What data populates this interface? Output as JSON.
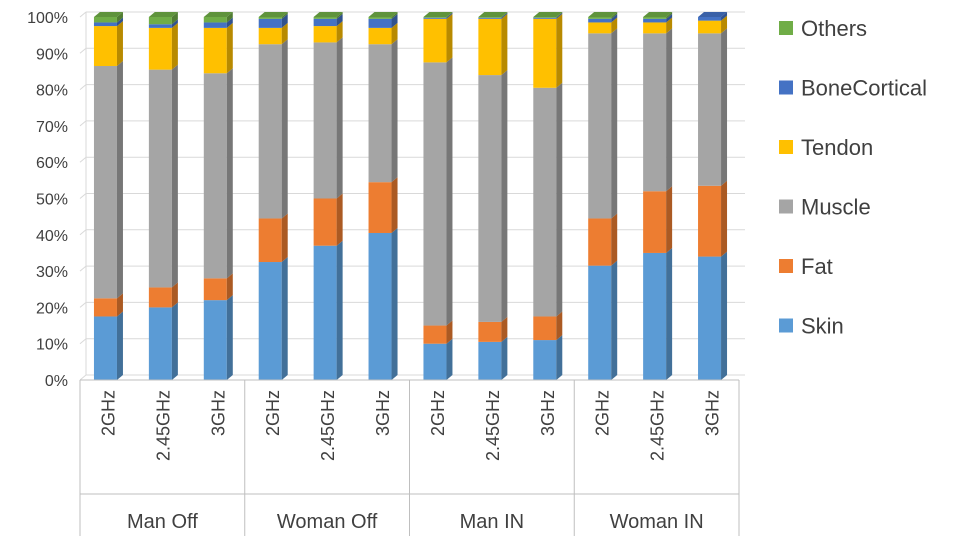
{
  "chart_data": {
    "type": "bar",
    "stacked": true,
    "percent": true,
    "three_d": true,
    "title": "",
    "xlabel": "",
    "ylabel": "",
    "ylim": [
      0,
      100
    ],
    "yticks": [
      "0%",
      "10%",
      "20%",
      "30%",
      "40%",
      "50%",
      "60%",
      "70%",
      "80%",
      "90%",
      "100%"
    ],
    "grid": true,
    "legend_position": "right",
    "groups": [
      {
        "label": "Man Off",
        "categories": [
          "2GHz",
          "2.45GHz",
          "3GHz"
        ]
      },
      {
        "label": "Woman Off",
        "categories": [
          "2GHz",
          "2.45GHz",
          "3GHz"
        ]
      },
      {
        "label": "Man IN",
        "categories": [
          "2GHz",
          "2.45GHz",
          "3GHz"
        ]
      },
      {
        "label": "Woman IN",
        "categories": [
          "2GHz",
          "2.45GHz",
          "3GHz"
        ]
      }
    ],
    "series": [
      {
        "name": "Skin",
        "color": "#5b9bd5",
        "values": [
          17.5,
          20,
          22,
          32.5,
          37,
          40.5,
          10,
          10.5,
          11,
          31.5,
          35,
          34
        ]
      },
      {
        "name": "Fat",
        "color": "#ed7d31",
        "values": [
          5,
          5.5,
          6,
          12,
          13,
          14,
          5,
          5.5,
          6.5,
          13,
          17,
          19.5
        ]
      },
      {
        "name": "Muscle",
        "color": "#a5a5a5",
        "values": [
          64,
          60,
          56.5,
          48,
          43,
          38,
          72.5,
          68,
          63,
          51,
          43.5,
          42
        ]
      },
      {
        "name": "Tendon",
        "color": "#ffc000",
        "values": [
          11,
          11.5,
          12.5,
          4.5,
          4.5,
          4.5,
          12,
          15.5,
          19,
          3,
          3,
          3.5
        ]
      },
      {
        "name": "BoneCortical",
        "color": "#4472c4",
        "values": [
          1,
          1,
          1.5,
          2.5,
          2,
          2.5,
          0.3,
          0.3,
          0.3,
          1,
          1,
          1
        ]
      },
      {
        "name": "Others",
        "color": "#70ad47",
        "values": [
          1.5,
          2,
          1.5,
          0.5,
          0.5,
          0.5,
          0.2,
          0.2,
          0.2,
          0.5,
          0.5,
          0
        ]
      }
    ]
  }
}
